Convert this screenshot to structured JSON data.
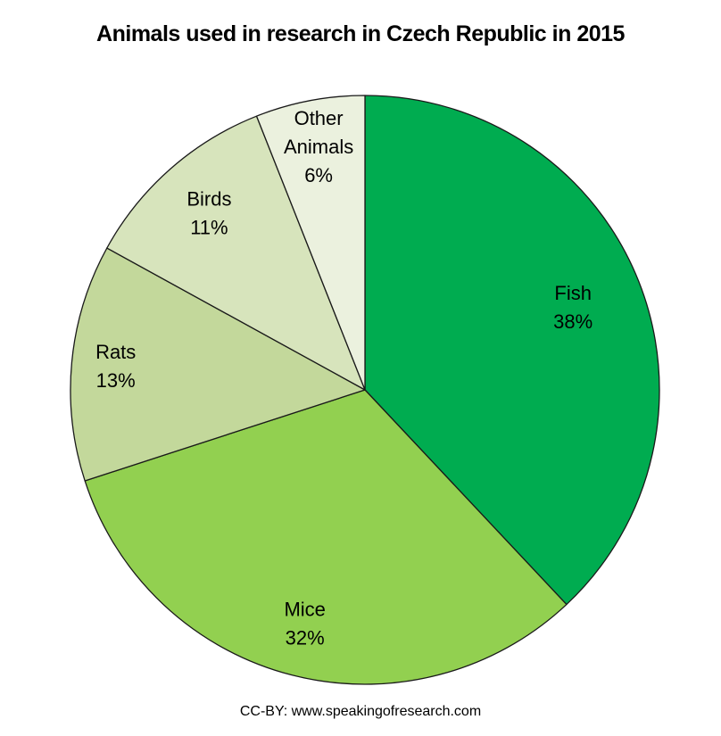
{
  "title": "Animals used in research in Czech Republic in 2015",
  "credit": "CC-BY: www.speakingofresearch.com",
  "colors": {
    "background": "#FFFFFF",
    "slice_outline": "#1A1A1A",
    "text": "#000000"
  },
  "chart_data": {
    "type": "pie",
    "title": "Animals used in research in Czech Republic in 2015",
    "unit": "%",
    "start_angle_deg": 0,
    "direction": "clockwise",
    "legend": "none",
    "labels_position": "inside",
    "categories": [
      "Fish",
      "Mice",
      "Rats",
      "Birds",
      "Other Animals"
    ],
    "values": [
      38,
      32,
      13,
      11,
      6
    ],
    "slices": [
      {
        "label": "Fish",
        "label_lines": [
          "Fish"
        ],
        "value": 38,
        "pct_label": "38%",
        "color": "#00AC50",
        "label_r": 0.76
      },
      {
        "label": "Mice",
        "label_lines": [
          "Mice"
        ],
        "value": 32,
        "pct_label": "32%",
        "color": "#92D050",
        "label_r": 0.82
      },
      {
        "label": "Rats",
        "label_lines": [
          "Rats"
        ],
        "value": 13,
        "pct_label": "13%",
        "color": "#C3D89B",
        "label_r": 0.85
      },
      {
        "label": "Birds",
        "label_lines": [
          "Birds"
        ],
        "value": 11,
        "pct_label": "11%",
        "color": "#D7E4BC",
        "label_r": 0.8
      },
      {
        "label": "Other Animals",
        "label_lines": [
          "Other",
          "Animals"
        ],
        "value": 6,
        "pct_label": "6%",
        "color": "#EBF1DE",
        "label_r": 0.84
      }
    ]
  }
}
